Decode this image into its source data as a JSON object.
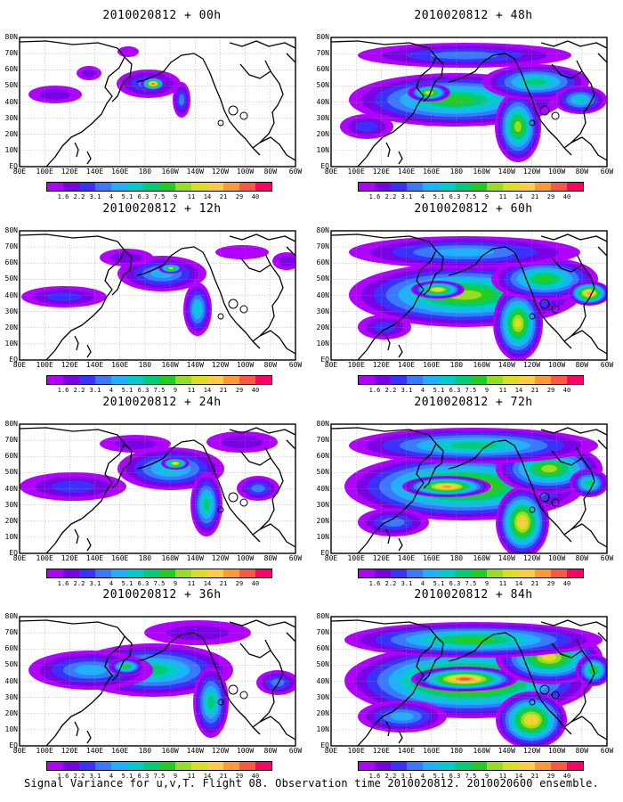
{
  "panels": [
    {
      "title": "2010020812 + 00h",
      "stage": 0
    },
    {
      "title": "2010020812 + 48h",
      "stage": 4
    },
    {
      "title": "2010020812 + 12h",
      "stage": 1
    },
    {
      "title": "2010020812 + 60h",
      "stage": 5
    },
    {
      "title": "2010020812 + 24h",
      "stage": 2
    },
    {
      "title": "2010020812 + 72h",
      "stage": 6
    },
    {
      "title": "2010020812 + 36h",
      "stage": 3
    },
    {
      "title": "2010020812 + 84h",
      "stage": 7
    }
  ],
  "axes": {
    "lat_labels": [
      "80N",
      "70N",
      "60N",
      "50N",
      "40N",
      "30N",
      "20N",
      "10N",
      "EQ"
    ],
    "lon_labels": [
      "80E",
      "100E",
      "120E",
      "140E",
      "160E",
      "180",
      "160W",
      "140W",
      "120W",
      "100W",
      "80W",
      "60W"
    ]
  },
  "colorbar": {
    "levels": [
      "1.6",
      "2.2",
      "3.1",
      "4",
      "5.1",
      "6.3",
      "7.5",
      "9",
      "11",
      "14",
      "21",
      "29",
      "40"
    ],
    "colors": [
      "#b000ff",
      "#7a00e6",
      "#3a30ff",
      "#3a78ff",
      "#1fb0ff",
      "#00cccc",
      "#00cc77",
      "#22cc22",
      "#99dd22",
      "#dddd22",
      "#ffcc44",
      "#ff9933",
      "#ff5544",
      "#ff0066"
    ]
  },
  "caption": "Signal Variance for u,v,T. Flight 08. Observation time 2010020812. 2010020600 ensemble."
}
